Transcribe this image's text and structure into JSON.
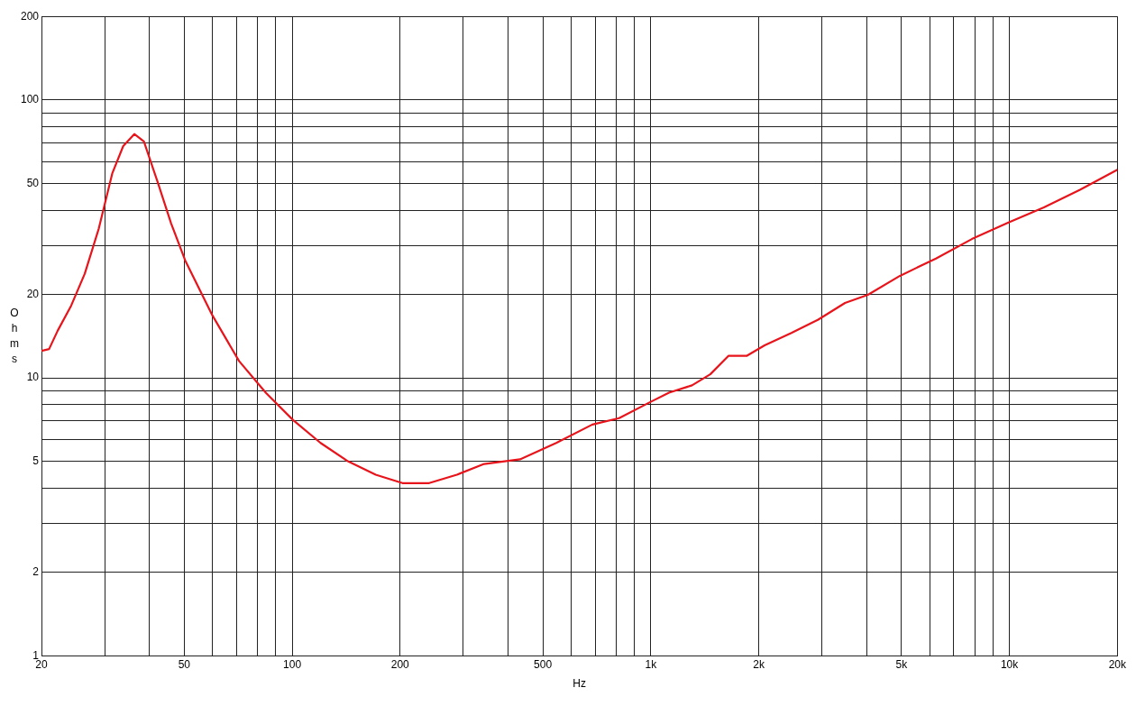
{
  "chart_data": {
    "type": "line",
    "xlabel": "Hz",
    "ylabel": "Ohms",
    "log": "xy",
    "grid": true,
    "legend": false,
    "marker": "none",
    "line_style": "solid",
    "xlim": [
      20,
      20000
    ],
    "ylim": [
      1,
      200
    ],
    "xticks": [
      20,
      {
        "value": 30,
        "label": null
      },
      {
        "value": 40,
        "label": null
      },
      50,
      {
        "value": 60,
        "label": null
      },
      {
        "value": 70,
        "label": null
      },
      {
        "value": 80,
        "label": null
      },
      {
        "value": 90,
        "label": null
      },
      100,
      200,
      {
        "value": 300,
        "label": null
      },
      {
        "value": 400,
        "label": null
      },
      500,
      {
        "value": 600,
        "label": null
      },
      {
        "value": 700,
        "label": null
      },
      {
        "value": 800,
        "label": null
      },
      {
        "value": 900,
        "label": null
      },
      {
        "value": 1000,
        "label": "1k"
      },
      {
        "value": 2000,
        "label": "2k"
      },
      {
        "value": 3000,
        "label": null
      },
      {
        "value": 4000,
        "label": null
      },
      {
        "value": 5000,
        "label": "5k"
      },
      {
        "value": 6000,
        "label": null
      },
      {
        "value": 7000,
        "label": null
      },
      {
        "value": 8000,
        "label": null
      },
      {
        "value": 9000,
        "label": null
      },
      {
        "value": 10000,
        "label": "10k"
      },
      {
        "value": 20000,
        "label": "20k"
      }
    ],
    "yticks": [
      1,
      2,
      {
        "value": 3,
        "label": null
      },
      {
        "value": 4,
        "label": null
      },
      5,
      {
        "value": 6,
        "label": null
      },
      {
        "value": 7,
        "label": null
      },
      {
        "value": 8,
        "label": null
      },
      {
        "value": 9,
        "label": null
      },
      10,
      20,
      {
        "value": 30,
        "label": null
      },
      {
        "value": 40,
        "label": null
      },
      50,
      {
        "value": 60,
        "label": null
      },
      {
        "value": 70,
        "label": null
      },
      {
        "value": 80,
        "label": null
      },
      {
        "value": 90,
        "label": null
      },
      100,
      200
    ],
    "series": [
      {
        "color": "#e8141b",
        "x": [
          20,
          21,
          22.2,
          24.2,
          26.4,
          28.9,
          31.5,
          33.8,
          36.3,
          38.6,
          42.2,
          46,
          50.3,
          59.9,
          71.1,
          84.4,
          100.6,
          120,
          143,
          171,
          203,
          241,
          288,
          343,
          432,
          545,
          687,
          816,
          1000,
          1124,
          1303,
          1465,
          1646,
          1850,
          2077,
          2467,
          2930,
          3480,
          4030,
          4953,
          6240,
          7860,
          9910,
          12480,
          15730,
          20000
        ],
        "values": [
          12.5,
          12.7,
          14.8,
          18.2,
          23.7,
          34.5,
          54.4,
          68.3,
          75.4,
          71,
          50.5,
          35.9,
          26.5,
          16.8,
          11.5,
          8.85,
          7.05,
          5.83,
          5.01,
          4.48,
          4.18,
          4.18,
          4.48,
          4.9,
          5.09,
          5.83,
          6.79,
          7.16,
          8.2,
          8.85,
          9.4,
          10.3,
          12,
          12,
          13.1,
          14.5,
          16.2,
          18.6,
          19.9,
          23.3,
          26.9,
          31.6,
          36.2,
          41.1,
          47.5,
          56.1
        ]
      }
    ]
  }
}
